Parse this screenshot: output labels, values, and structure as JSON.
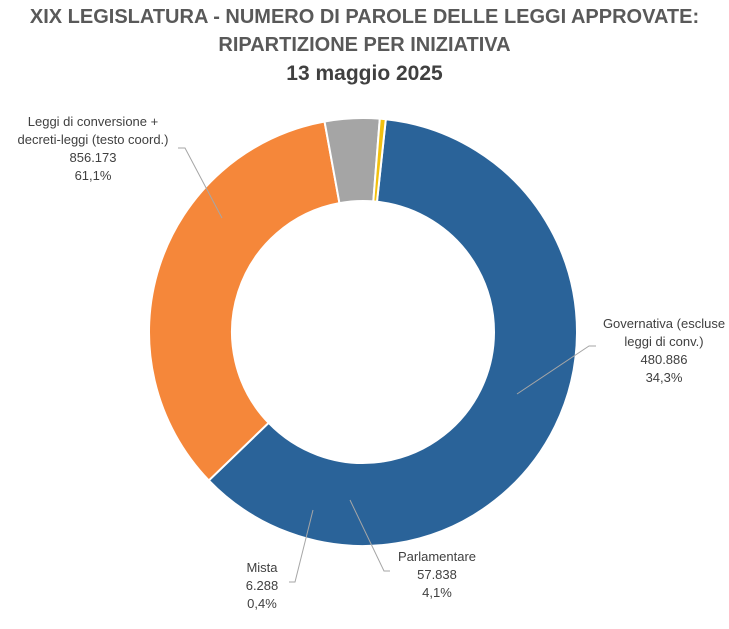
{
  "title": {
    "line1": "XIX LEGISLATURA - NUMERO DI PAROLE DELLE LEGGI APPROVATE:",
    "line2": "RIPARTIZIONE PER INIZIATIVA",
    "line3": "13 maggio 2025"
  },
  "chart_data": {
    "type": "pie",
    "variant": "doughnut",
    "slices": [
      {
        "label_lines": [
          "Leggi di conversione +",
          "decreti-leggi (testo coord.)"
        ],
        "value": 856173,
        "value_label": "856.173",
        "percent": 61.1,
        "percent_label": "61,1%",
        "color": "#2a6399"
      },
      {
        "label_lines": [
          "Governativa (escluse",
          "leggi di conv.)"
        ],
        "value": 480886,
        "value_label": "480.886",
        "percent": 34.3,
        "percent_label": "34,3%",
        "color": "#f5873a"
      },
      {
        "label_lines": [
          "Parlamentare"
        ],
        "value": 57838,
        "value_label": "57.838",
        "percent": 4.1,
        "percent_label": "4,1%",
        "color": "#a5a5a5"
      },
      {
        "label_lines": [
          "Mista"
        ],
        "value": 6288,
        "value_label": "6.288",
        "percent": 0.4,
        "percent_label": "0,4%",
        "color": "#f2c00f"
      }
    ]
  }
}
